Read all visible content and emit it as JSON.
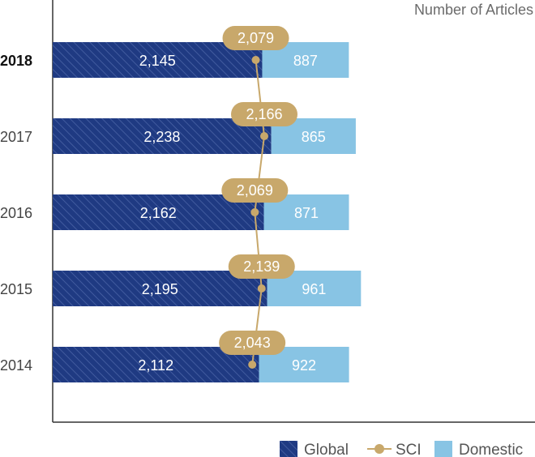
{
  "chart_data": {
    "type": "bar",
    "orientation": "horizontal",
    "stacked": true,
    "title": "Number of Articles",
    "categories": [
      "2018",
      "2017",
      "2016",
      "2015",
      "2014"
    ],
    "highlight_category": "2018",
    "series": [
      {
        "name": "Global",
        "values": [
          2145,
          2238,
          2162,
          2195,
          2112
        ],
        "color": "#1f3a82",
        "pattern": "diagonal-hatch"
      },
      {
        "name": "Domestic",
        "values": [
          887,
          865,
          871,
          961,
          922
        ],
        "color": "#88c4e4"
      },
      {
        "name": "SCI",
        "type": "line",
        "values": [
          2079,
          2166,
          2069,
          2139,
          2043
        ],
        "color": "#c8a86b"
      }
    ],
    "data_labels": {
      "Global": [
        "2,145",
        "2,238",
        "2,162",
        "2,195",
        "2,112"
      ],
      "Domestic": [
        "887",
        "865",
        "871",
        "961",
        "922"
      ],
      "SCI": [
        "2,079",
        "2,166",
        "2,069",
        "2,139",
        "2,043"
      ]
    },
    "xlim": [
      0,
      3300
    ],
    "legend": {
      "position": "bottom-right",
      "items": [
        "Global",
        "SCI",
        "Domestic"
      ]
    },
    "grid": false
  }
}
